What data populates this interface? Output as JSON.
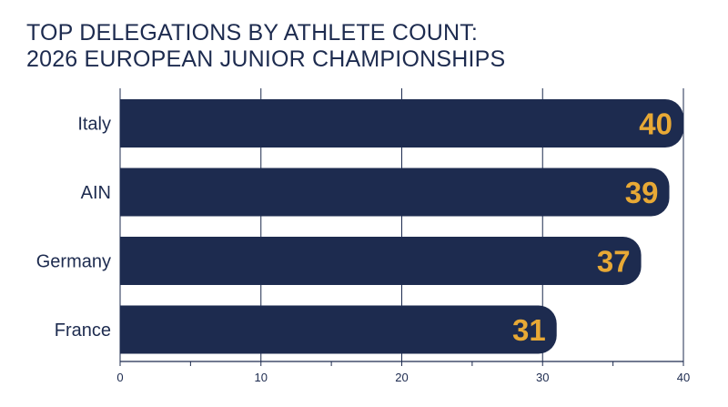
{
  "chart_data": {
    "type": "bar",
    "orientation": "horizontal",
    "title_lines": [
      "TOP DELEGATIONS BY ATHLETE COUNT:",
      "2026 EUROPEAN JUNIOR CHAMPIONSHIPS"
    ],
    "categories": [
      "Italy",
      "AIN",
      "Germany",
      "France"
    ],
    "values": [
      40,
      39,
      37,
      31
    ],
    "xlim": [
      0,
      40
    ],
    "xticks": [
      0,
      10,
      20,
      30,
      40
    ],
    "minor_ticks": [
      5,
      15,
      25,
      35
    ],
    "grid": true,
    "xlabel": "",
    "ylabel": "",
    "bar_color": "#1d2b4f",
    "value_label_color": "#e8a935",
    "text_color": "#1d2b4f"
  }
}
